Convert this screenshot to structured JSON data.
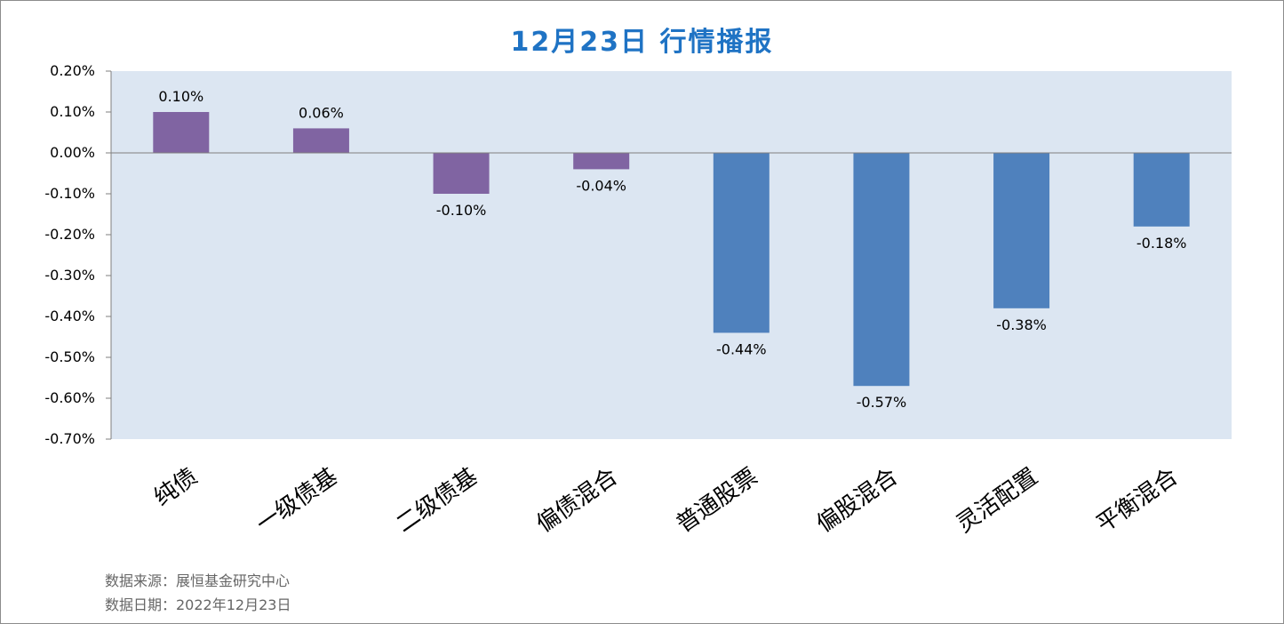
{
  "title": "12月23日  行情播报",
  "footer": {
    "source": "数据来源：展恒基金研究中心",
    "date": "数据日期：2022年12月23日"
  },
  "colors": {
    "plot_background": "#dce6f2",
    "bond_bar": "#8064a2",
    "equity_bar": "#4f81bd",
    "title": "#1f73c4"
  },
  "chart_data": {
    "type": "bar",
    "title": "12月23日  行情播报",
    "xlabel": "",
    "ylabel": "",
    "ylim": [
      -0.7,
      0.2
    ],
    "yticks": [
      "0.20%",
      "0.10%",
      "0.00%",
      "-0.10%",
      "-0.20%",
      "-0.30%",
      "-0.40%",
      "-0.50%",
      "-0.60%",
      "-0.70%"
    ],
    "ytick_values": [
      0.2,
      0.1,
      0.0,
      -0.1,
      -0.2,
      -0.3,
      -0.4,
      -0.5,
      -0.6,
      -0.7
    ],
    "categories": [
      "纯债",
      "一级债基",
      "二级债基",
      "偏债混合",
      "普通股票",
      "偏股混合",
      "灵活配置",
      "平衡混合"
    ],
    "values": [
      0.1,
      0.06,
      -0.1,
      -0.04,
      -0.44,
      -0.57,
      -0.38,
      -0.18
    ],
    "value_labels": [
      "0.10%",
      "0.06%",
      "-0.10%",
      "-0.04%",
      "-0.44%",
      "-0.57%",
      "-0.38%",
      "-0.18%"
    ],
    "bar_colors": [
      "#8064a2",
      "#8064a2",
      "#8064a2",
      "#8064a2",
      "#4f81bd",
      "#4f81bd",
      "#4f81bd",
      "#4f81bd"
    ],
    "grid": false,
    "legend": "none"
  }
}
